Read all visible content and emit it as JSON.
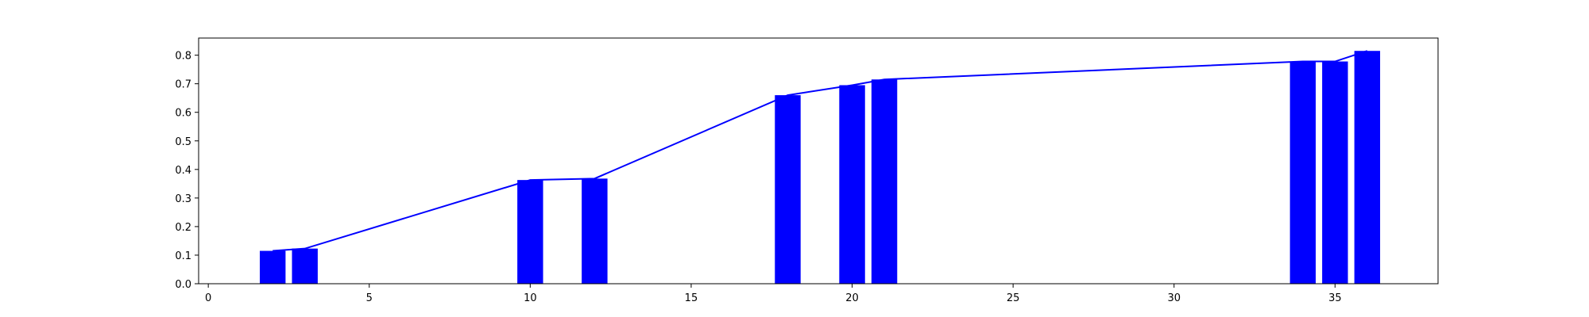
{
  "chart_data": {
    "type": "bar",
    "bar_color": "#0000ff",
    "line_color": "#0000ff",
    "bar_width": 0.8,
    "x": [
      2,
      3,
      10,
      12,
      18,
      20,
      21,
      34,
      35,
      36
    ],
    "values": [
      0.115,
      0.123,
      0.363,
      0.368,
      0.66,
      0.695,
      0.715,
      0.778,
      0.778,
      0.815
    ],
    "xlim": [
      -0.3,
      38.2
    ],
    "ylim": [
      0,
      0.86
    ],
    "xticks": [
      0,
      5,
      10,
      15,
      20,
      25,
      30,
      35
    ],
    "yticks": [
      0.0,
      0.1,
      0.2,
      0.3,
      0.4,
      0.5,
      0.6,
      0.7,
      0.8
    ],
    "xtick_labels": [
      "0",
      "5",
      "10",
      "15",
      "20",
      "25",
      "30",
      "35"
    ],
    "ytick_labels": [
      "0.0",
      "0.1",
      "0.2",
      "0.3",
      "0.4",
      "0.5",
      "0.6",
      "0.7",
      "0.8"
    ],
    "title": "",
    "xlabel": "",
    "ylabel": "",
    "grid": false
  }
}
